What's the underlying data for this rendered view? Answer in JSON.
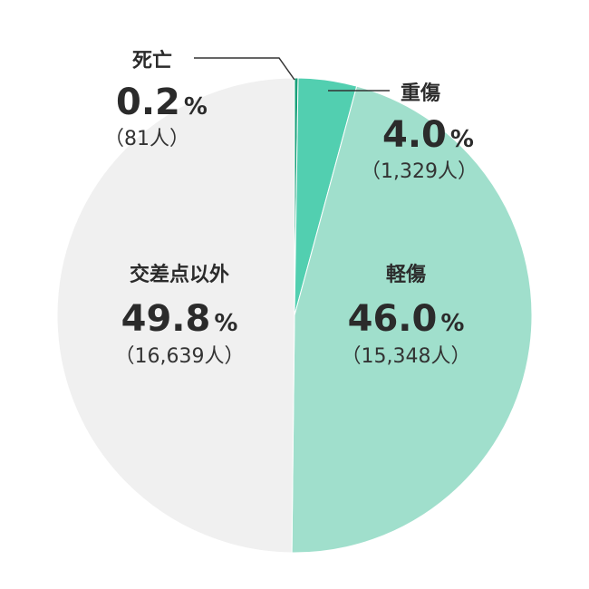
{
  "chart_data": {
    "type": "pie",
    "slices": [
      {
        "label": "死亡",
        "percent_text": "0.2",
        "count_text": "（81人）",
        "value": 81,
        "color": "#1aa07a"
      },
      {
        "label": "重傷",
        "percent_text": "4.0",
        "count_text": "（1,329人）",
        "value": 1329,
        "color": "#52cfb0"
      },
      {
        "label": "軽傷",
        "percent_text": "46.0",
        "count_text": "（15,348人）",
        "value": 15348,
        "color": "#a0dfcc"
      },
      {
        "label": "交差点以外",
        "percent_text": "49.8",
        "count_text": "（16,639人）",
        "value": 16639,
        "color": "#f0f0f0"
      }
    ],
    "percent_unit": "%",
    "start_angle_deg": 0,
    "direction": "clockwise"
  }
}
